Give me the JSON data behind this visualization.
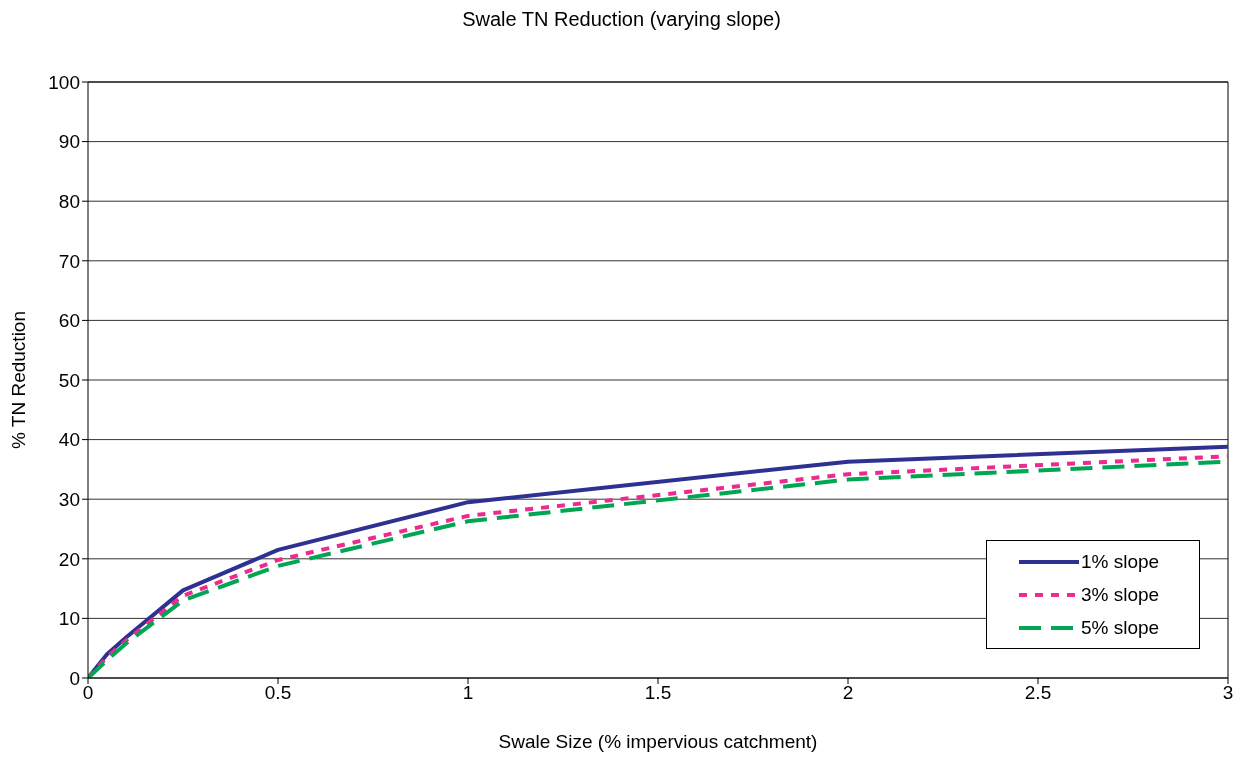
{
  "chart_data": {
    "type": "line",
    "title": "Swale TN Reduction (varying slope)",
    "xlabel": "Swale Size (% impervious catchment)",
    "ylabel": "% TN Reduction",
    "x": [
      0,
      0.05,
      0.1,
      0.25,
      0.5,
      1,
      2,
      3
    ],
    "series": [
      {
        "name": "1% slope",
        "color": "#2e3192",
        "line_style": "solid",
        "values": [
          0,
          4,
          6.8,
          14.7,
          21.5,
          29.5,
          36.3,
          38.8
        ]
      },
      {
        "name": "3% slope",
        "color": "#ec2a8f",
        "line_style": "dotted",
        "values": [
          0,
          3.5,
          6.3,
          13.8,
          19.8,
          27.2,
          34.2,
          37.2
        ]
      },
      {
        "name": "5% slope",
        "color": "#00a651",
        "line_style": "dashed",
        "values": [
          0,
          3,
          5.8,
          13,
          18.8,
          26.3,
          33.3,
          36.3
        ]
      }
    ],
    "xlim": [
      0,
      3
    ],
    "xticks": [
      0,
      0.5,
      1,
      1.5,
      2,
      2.5,
      3
    ],
    "ylim": [
      0,
      100
    ],
    "yticks": [
      0,
      10,
      20,
      30,
      40,
      50,
      60,
      70,
      80,
      90,
      100
    ],
    "grid": "y",
    "legend": "bottom right",
    "marker": "none"
  }
}
